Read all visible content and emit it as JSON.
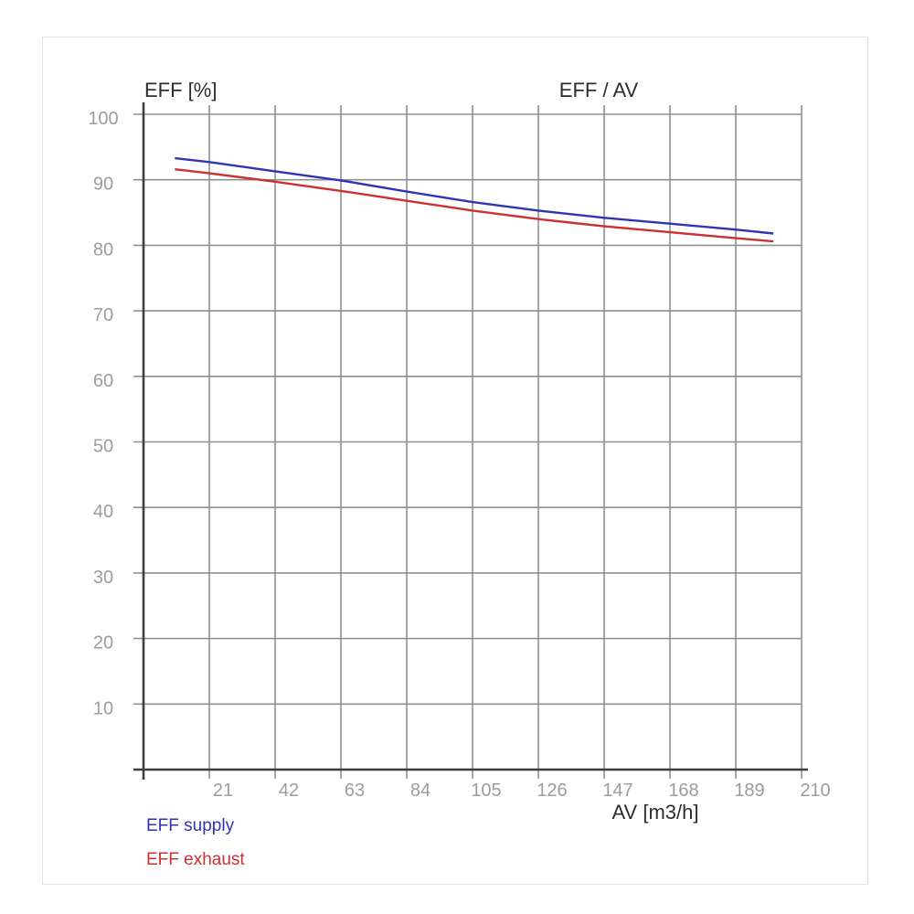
{
  "chart_data": {
    "type": "line",
    "title": "EFF / AV",
    "ylabel": "EFF [%]",
    "xlabel": "AV [m3/h]",
    "xlim": [
      0,
      210
    ],
    "ylim": [
      0,
      100
    ],
    "x_ticks": [
      21,
      42,
      63,
      84,
      105,
      126,
      147,
      168,
      189,
      210
    ],
    "y_ticks": [
      10,
      20,
      30,
      40,
      50,
      60,
      70,
      80,
      90,
      100
    ],
    "grid": true,
    "legend_position": "bottom-left",
    "x": [
      10,
      21,
      42,
      63,
      84,
      105,
      126,
      147,
      168,
      189,
      201
    ],
    "series": [
      {
        "name": "EFF supply",
        "color": "#3232b4",
        "values": [
          93.3,
          92.7,
          91.3,
          89.9,
          88.2,
          86.6,
          85.3,
          84.2,
          83.3,
          82.4,
          81.8
        ]
      },
      {
        "name": "EFF exhaust",
        "color": "#cc3030",
        "values": [
          91.6,
          91.0,
          89.7,
          88.3,
          86.8,
          85.3,
          84.0,
          82.9,
          82.0,
          81.1,
          80.6
        ]
      }
    ],
    "colors": {
      "grid": "#8f8f8f",
      "axis": "#3f3f3f",
      "tick_label": "#9c9c9c",
      "title": "#2d2d2d"
    }
  }
}
